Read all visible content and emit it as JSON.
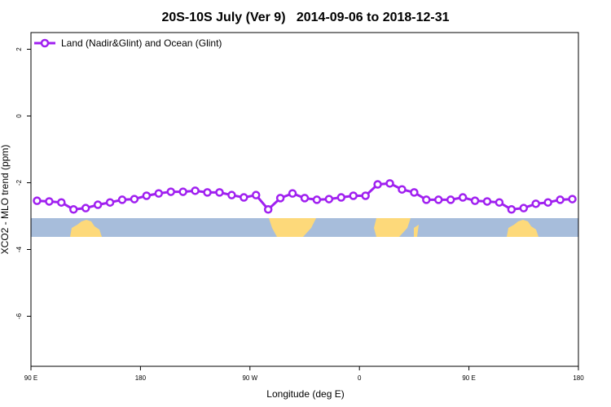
{
  "chart_data": {
    "type": "line",
    "title": "20S-10S July (Ver 9)   2014-09-06 to 2018-12-31",
    "x_label": "Longitude (deg E)",
    "y_label": "XCO2 - MLO trend (ppm)",
    "x": [
      95,
      105,
      115,
      125,
      135,
      145,
      155,
      165,
      175,
      185,
      195,
      205,
      215,
      225,
      235,
      245,
      255,
      265,
      275,
      285,
      295,
      305,
      315,
      325,
      335,
      345,
      355,
      365,
      375,
      385,
      395,
      405,
      415,
      425,
      435,
      445,
      455,
      465,
      475,
      485,
      495,
      505,
      515,
      525,
      535
    ],
    "series": [
      {
        "name": "Land (Nadir&Glint) and Ocean (Glint)",
        "color": "#a020f0",
        "values": [
          -2.54,
          -2.56,
          -2.59,
          -2.8,
          -2.76,
          -2.66,
          -2.59,
          -2.51,
          -2.49,
          -2.39,
          -2.32,
          -2.27,
          -2.27,
          -2.24,
          -2.29,
          -2.29,
          -2.37,
          -2.44,
          -2.37,
          -2.8,
          -2.46,
          -2.32,
          -2.46,
          -2.51,
          -2.49,
          -2.44,
          -2.39,
          -2.39,
          -2.05,
          -2.02,
          -2.2,
          -2.29,
          -2.51,
          -2.51,
          -2.51,
          -2.44,
          -2.54,
          -2.56,
          -2.59,
          -2.8,
          -2.76,
          -2.63,
          -2.59,
          -2.51,
          -2.49
        ]
      }
    ],
    "xlim": [
      90,
      540
    ],
    "xticks": [
      {
        "value": 90,
        "label": "90 E"
      },
      180,
      {
        "value": 270,
        "label": "90 W"
      },
      {
        "value": 360,
        "label": "0"
      },
      {
        "value": 450,
        "label": "90 E"
      },
      {
        "value": 540,
        "label": "180"
      }
    ],
    "ylim": [
      -7.5,
      2.5
    ],
    "yticks": [
      2,
      0,
      -2,
      -4,
      -6
    ],
    "legend": "top-left"
  }
}
